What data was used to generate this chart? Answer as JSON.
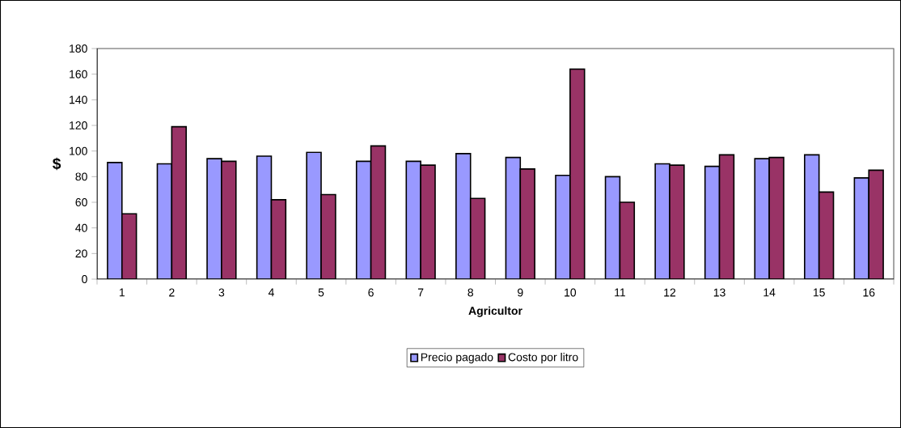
{
  "chart_data": {
    "type": "bar",
    "xlabel": "Agricultor",
    "ylabel": "$",
    "categories": [
      "1",
      "2",
      "3",
      "4",
      "5",
      "6",
      "7",
      "8",
      "9",
      "10",
      "11",
      "12",
      "13",
      "14",
      "15",
      "16"
    ],
    "series": [
      {
        "name": "Precio pagado",
        "color": "#9999ff",
        "values": [
          91,
          90,
          94,
          96,
          99,
          92,
          92,
          98,
          95,
          81,
          80,
          90,
          88,
          94,
          97,
          79
        ]
      },
      {
        "name": "Costo por litro",
        "color": "#993366",
        "values": [
          51,
          119,
          92,
          62,
          66,
          104,
          89,
          63,
          86,
          164,
          60,
          89,
          97,
          95,
          68,
          85
        ]
      }
    ],
    "ylim": [
      0,
      180
    ],
    "yticks": [
      0,
      20,
      40,
      60,
      80,
      100,
      120,
      140,
      160,
      180
    ],
    "grid": false,
    "legend": "bottom"
  }
}
